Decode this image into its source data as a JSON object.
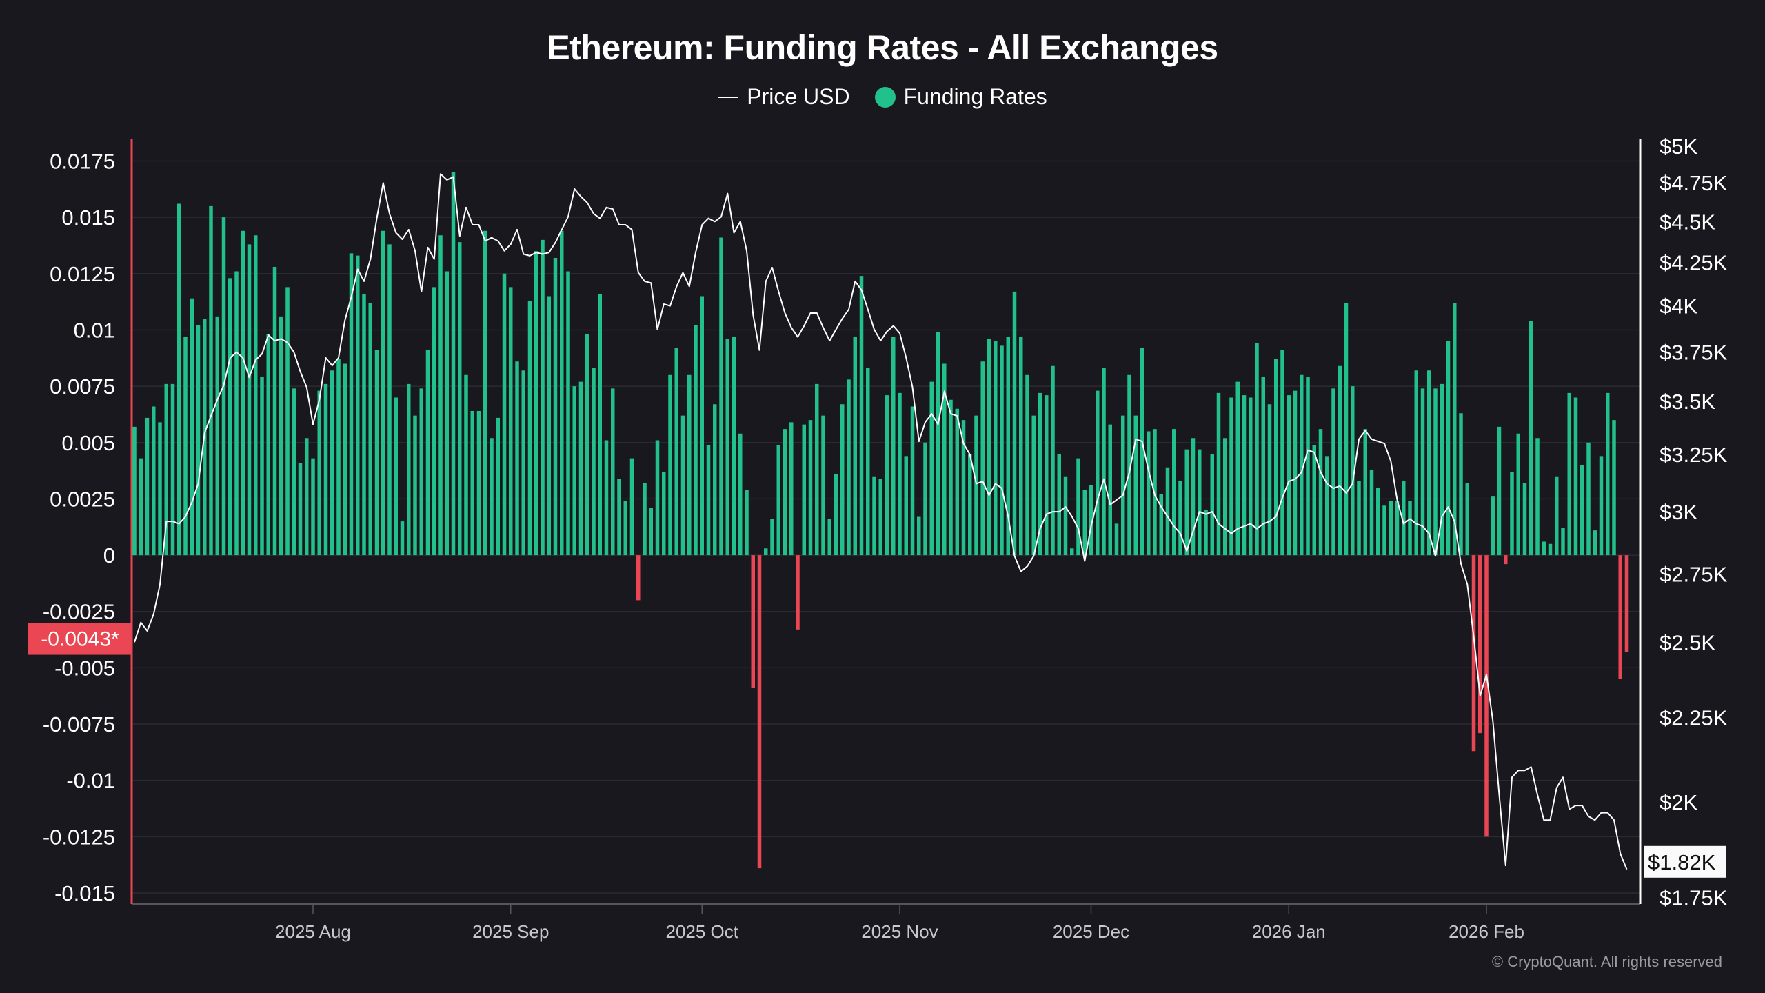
{
  "chart_data": {
    "type": "bar+line",
    "title": "Ethereum: Funding Rates - All Exchanges",
    "legend": [
      {
        "name": "Price USD",
        "type": "line",
        "color": "#ffffff"
      },
      {
        "name": "Funding Rates",
        "type": "bar",
        "color": "#22c08a"
      }
    ],
    "legend_position": "top-center",
    "colors": {
      "positive": "#22c08a",
      "negative": "#ea4653",
      "background": "#18181e",
      "grid": "#2a2a31"
    },
    "grid": true,
    "y_left": {
      "range": [
        -0.015,
        0.0175
      ],
      "ticks": [
        {
          "value": 0.0175,
          "label": "0.0175"
        },
        {
          "value": 0.015,
          "label": "0.015"
        },
        {
          "value": 0.0125,
          "label": "0.0125"
        },
        {
          "value": 0.01,
          "label": "0.01"
        },
        {
          "value": 0.0075,
          "label": "0.0075"
        },
        {
          "value": 0.005,
          "label": "0.005"
        },
        {
          "value": 0.0025,
          "label": "0.0025"
        },
        {
          "value": 0,
          "label": "0"
        },
        {
          "value": -0.0025,
          "label": "-0.0025"
        },
        {
          "value": -0.005,
          "label": "-0.005"
        },
        {
          "value": -0.0075,
          "label": "-0.0075"
        },
        {
          "value": -0.01,
          "label": "-0.01"
        },
        {
          "value": -0.0125,
          "label": "-0.0125"
        },
        {
          "value": -0.015,
          "label": "-0.015"
        }
      ],
      "current_value": -0.0043,
      "current_label": "-0.0043*"
    },
    "y_right": {
      "scale": "log",
      "range": [
        1750,
        5000
      ],
      "ticks": [
        {
          "value": 5000,
          "label": "$5K"
        },
        {
          "value": 4750,
          "label": "$4.75K"
        },
        {
          "value": 4500,
          "label": "$4.5K"
        },
        {
          "value": 4250,
          "label": "$4.25K"
        },
        {
          "value": 4000,
          "label": "$4K"
        },
        {
          "value": 3750,
          "label": "$3.75K"
        },
        {
          "value": 3500,
          "label": "$3.5K"
        },
        {
          "value": 3250,
          "label": "$3.25K"
        },
        {
          "value": 3000,
          "label": "$3K"
        },
        {
          "value": 2750,
          "label": "$2.75K"
        },
        {
          "value": 2500,
          "label": "$2.5K"
        },
        {
          "value": 2250,
          "label": "$2.25K"
        },
        {
          "value": 2000,
          "label": "$2K"
        },
        {
          "value": 1750,
          "label": "$1.75K"
        }
      ],
      "current_value": 1820,
      "current_label": "$1.82K"
    },
    "x_ticks": [
      {
        "date": "2025-08-01",
        "label": "2025 Aug"
      },
      {
        "date": "2025-09-01",
        "label": "2025 Sep"
      },
      {
        "date": "2025-10-01",
        "label": "2025 Oct"
      },
      {
        "date": "2025-11-01",
        "label": "2025 Nov"
      },
      {
        "date": "2025-12-01",
        "label": "2025 Dec"
      },
      {
        "date": "2026-01-01",
        "label": "2026 Jan"
      },
      {
        "date": "2026-02-01",
        "label": "2026 Feb"
      }
    ],
    "x": [
      "2025-07-04",
      "2025-07-05",
      "2025-07-06",
      "2025-07-07",
      "2025-07-08",
      "2025-07-09",
      "2025-07-10",
      "2025-07-11",
      "2025-07-12",
      "2025-07-13",
      "2025-07-14",
      "2025-07-15",
      "2025-07-16",
      "2025-07-17",
      "2025-07-18",
      "2025-07-19",
      "2025-07-20",
      "2025-07-21",
      "2025-07-22",
      "2025-07-23",
      "2025-07-24",
      "2025-07-25",
      "2025-07-26",
      "2025-07-27",
      "2025-07-28",
      "2025-07-29",
      "2025-07-30",
      "2025-07-31",
      "2025-08-01",
      "2025-08-02",
      "2025-08-03",
      "2025-08-04",
      "2025-08-05",
      "2025-08-06",
      "2025-08-07",
      "2025-08-08",
      "2025-08-09",
      "2025-08-10",
      "2025-08-11",
      "2025-08-12",
      "2025-08-13",
      "2025-08-14",
      "2025-08-15",
      "2025-08-16",
      "2025-08-17",
      "2025-08-18",
      "2025-08-19",
      "2025-08-20",
      "2025-08-21",
      "2025-08-22",
      "2025-08-23",
      "2025-08-24",
      "2025-08-25",
      "2025-08-26",
      "2025-08-27",
      "2025-08-28",
      "2025-08-29",
      "2025-08-30",
      "2025-08-31",
      "2025-09-01",
      "2025-09-02",
      "2025-09-03",
      "2025-09-04",
      "2025-09-05",
      "2025-09-06",
      "2025-09-07",
      "2025-09-08",
      "2025-09-09",
      "2025-09-10",
      "2025-09-11",
      "2025-09-12",
      "2025-09-13",
      "2025-09-14",
      "2025-09-15",
      "2025-09-16",
      "2025-09-17",
      "2025-09-18",
      "2025-09-19",
      "2025-09-20",
      "2025-09-21",
      "2025-09-22",
      "2025-09-23",
      "2025-09-24",
      "2025-09-25",
      "2025-09-26",
      "2025-09-27",
      "2025-09-28",
      "2025-09-29",
      "2025-09-30",
      "2025-10-01",
      "2025-10-02",
      "2025-10-03",
      "2025-10-04",
      "2025-10-05",
      "2025-10-06",
      "2025-10-07",
      "2025-10-08",
      "2025-10-09",
      "2025-10-10",
      "2025-10-11",
      "2025-10-12",
      "2025-10-13",
      "2025-10-14",
      "2025-10-15",
      "2025-10-16",
      "2025-10-17",
      "2025-10-18",
      "2025-10-19",
      "2025-10-20",
      "2025-10-21",
      "2025-10-22",
      "2025-10-23",
      "2025-10-24",
      "2025-10-25",
      "2025-10-26",
      "2025-10-27",
      "2025-10-28",
      "2025-10-29",
      "2025-10-30",
      "2025-10-31",
      "2025-11-01",
      "2025-11-02",
      "2025-11-03",
      "2025-11-04",
      "2025-11-05",
      "2025-11-06",
      "2025-11-07",
      "2025-11-08",
      "2025-11-09",
      "2025-11-10",
      "2025-11-11",
      "2025-11-12",
      "2025-11-13",
      "2025-11-14",
      "2025-11-15",
      "2025-11-16",
      "2025-11-17",
      "2025-11-18",
      "2025-11-19",
      "2025-11-20",
      "2025-11-21",
      "2025-11-22",
      "2025-11-23",
      "2025-11-24",
      "2025-11-25",
      "2025-11-26",
      "2025-11-27",
      "2025-11-28",
      "2025-11-29",
      "2025-11-30",
      "2025-12-01",
      "2025-12-02",
      "2025-12-03",
      "2025-12-04",
      "2025-12-05",
      "2025-12-06",
      "2025-12-07",
      "2025-12-08",
      "2025-12-09",
      "2025-12-10",
      "2025-12-11",
      "2025-12-12",
      "2025-12-13",
      "2025-12-14",
      "2025-12-15",
      "2025-12-16",
      "2025-12-17",
      "2025-12-18",
      "2025-12-19",
      "2025-12-20",
      "2025-12-21",
      "2025-12-22",
      "2025-12-23",
      "2025-12-24",
      "2025-12-25",
      "2025-12-26",
      "2025-12-27",
      "2025-12-28",
      "2025-12-29",
      "2025-12-30",
      "2025-12-31",
      "2026-01-01",
      "2026-01-02",
      "2026-01-03",
      "2026-01-04",
      "2026-01-05",
      "2026-01-06",
      "2026-01-07",
      "2026-01-08",
      "2026-01-09",
      "2026-01-10",
      "2026-01-11",
      "2026-01-12",
      "2026-01-13",
      "2026-01-14",
      "2026-01-15",
      "2026-01-16",
      "2026-01-17",
      "2026-01-18",
      "2026-01-19",
      "2026-01-20",
      "2026-01-21",
      "2026-01-22",
      "2026-01-23",
      "2026-01-24",
      "2026-01-25",
      "2026-01-26",
      "2026-01-27",
      "2026-01-28",
      "2026-01-29",
      "2026-01-30",
      "2026-01-31",
      "2026-02-01",
      "2026-02-02",
      "2026-02-03",
      "2026-02-04",
      "2026-02-05",
      "2026-02-06",
      "2026-02-07",
      "2026-02-08",
      "2026-02-09",
      "2026-02-10",
      "2026-02-11",
      "2026-02-12",
      "2026-02-13",
      "2026-02-14",
      "2026-02-15",
      "2026-02-16",
      "2026-02-17",
      "2026-02-18",
      "2026-02-19",
      "2026-02-20",
      "2026-02-21",
      "2026-02-22",
      "2026-02-23"
    ],
    "series": [
      {
        "name": "Funding Rates",
        "type": "bar",
        "axis": "left",
        "values": [
          0.0057,
          0.0043,
          0.0061,
          0.0066,
          0.0059,
          0.0076,
          0.0076,
          0.0156,
          0.0097,
          0.0114,
          0.0102,
          0.0105,
          0.0155,
          0.0106,
          0.015,
          0.0123,
          0.0126,
          0.0144,
          0.0138,
          0.0142,
          0.0079,
          0.0098,
          0.0128,
          0.0106,
          0.0119,
          0.0074,
          0.0041,
          0.0052,
          0.0043,
          0.0073,
          0.0076,
          0.0082,
          0.0087,
          0.0085,
          0.0134,
          0.0133,
          0.0116,
          0.0112,
          0.0091,
          0.0144,
          0.0138,
          0.007,
          0.0015,
          0.0076,
          0.0062,
          0.0074,
          0.0091,
          0.0119,
          0.0142,
          0.0126,
          0.017,
          0.0139,
          0.008,
          0.0064,
          0.0064,
          0.0144,
          0.0052,
          0.0061,
          0.0125,
          0.0119,
          0.0086,
          0.0082,
          0.0113,
          0.0135,
          0.014,
          0.0115,
          0.0132,
          0.0144,
          0.0126,
          0.0075,
          0.0077,
          0.0098,
          0.0083,
          0.0116,
          0.0051,
          0.0074,
          0.0034,
          0.0024,
          0.0043,
          -0.002,
          0.0032,
          0.0021,
          0.0051,
          0.0037,
          0.008,
          0.0092,
          0.0062,
          0.008,
          0.0102,
          0.0115,
          0.0049,
          0.0067,
          0.0141,
          0.0096,
          0.0097,
          0.0054,
          0.0029,
          -0.0059,
          -0.0139,
          0.0003,
          0.0016,
          0.0049,
          0.0056,
          0.0059,
          -0.0033,
          0.0058,
          0.006,
          0.0076,
          0.0062,
          0.0016,
          0.0036,
          0.0067,
          0.0078,
          0.0097,
          0.0124,
          0.0083,
          0.0035,
          0.0034,
          0.0071,
          0.0097,
          0.0072,
          0.0044,
          0.0066,
          0.0017,
          0.005,
          0.0077,
          0.0099,
          0.0085,
          0.0069,
          0.0065,
          0.006,
          0.0045,
          0.0062,
          0.0086,
          0.0096,
          0.0095,
          0.0093,
          0.0097,
          0.0117,
          0.0097,
          0.008,
          0.0062,
          0.0072,
          0.0071,
          0.0084,
          0.0045,
          0.0035,
          0.0003,
          0.0043,
          0.0029,
          0.0031,
          0.0073,
          0.0083,
          0.0058,
          0.0014,
          0.0062,
          0.008,
          0.0062,
          0.0092,
          0.0055,
          0.0056,
          0.0027,
          0.0039,
          0.0056,
          0.0033,
          0.0047,
          0.0052,
          0.0047,
          0.002,
          0.0045,
          0.0072,
          0.0052,
          0.007,
          0.0077,
          0.0071,
          0.007,
          0.0094,
          0.0079,
          0.0067,
          0.0087,
          0.0091,
          0.0071,
          0.0073,
          0.008,
          0.0079,
          0.0049,
          0.0056,
          0.0044,
          0.0074,
          0.0084,
          0.0112,
          0.0075,
          0.0033,
          0.0056,
          0.0038,
          0.003,
          0.0022,
          0.0024,
          0.0024,
          0.0033,
          0.0024,
          0.0082,
          0.0074,
          0.0082,
          0.0074,
          0.0076,
          0.0095,
          0.0112,
          0.0063,
          0.0032,
          -0.0087,
          -0.0079,
          -0.0125,
          0.0026,
          0.0057,
          -0.0004,
          0.0037,
          0.0054,
          0.0032,
          0.0104,
          0.0052,
          0.0006,
          0.0005,
          0.0035,
          0.0012,
          0.0072,
          0.007,
          0.004,
          0.005,
          0.0011,
          0.0044,
          0.0072,
          0.006,
          -0.0055,
          -0.0043
        ]
      },
      {
        "name": "Price USD",
        "type": "line",
        "axis": "right",
        "values": [
          2500,
          2570,
          2540,
          2600,
          2710,
          2960,
          2960,
          2950,
          2980,
          3040,
          3120,
          3350,
          3430,
          3510,
          3580,
          3720,
          3750,
          3720,
          3620,
          3710,
          3740,
          3840,
          3810,
          3820,
          3800,
          3750,
          3650,
          3570,
          3390,
          3510,
          3720,
          3680,
          3720,
          3920,
          4050,
          4210,
          4140,
          4270,
          4520,
          4750,
          4550,
          4430,
          4390,
          4450,
          4320,
          4080,
          4340,
          4270,
          4810,
          4770,
          4790,
          4410,
          4590,
          4480,
          4480,
          4380,
          4400,
          4380,
          4320,
          4360,
          4450,
          4300,
          4290,
          4310,
          4300,
          4310,
          4370,
          4450,
          4530,
          4710,
          4660,
          4620,
          4550,
          4520,
          4590,
          4580,
          4480,
          4480,
          4450,
          4190,
          4140,
          4130,
          3870,
          4010,
          4000,
          4110,
          4190,
          4110,
          4310,
          4480,
          4520,
          4500,
          4530,
          4680,
          4430,
          4500,
          4320,
          3950,
          3760,
          4140,
          4220,
          4080,
          3960,
          3880,
          3830,
          3890,
          3960,
          3960,
          3880,
          3810,
          3870,
          3930,
          3980,
          4140,
          4090,
          3980,
          3870,
          3810,
          3860,
          3890,
          3850,
          3720,
          3570,
          3310,
          3400,
          3440,
          3390,
          3550,
          3440,
          3430,
          3300,
          3250,
          3120,
          3130,
          3070,
          3120,
          3100,
          2980,
          2820,
          2760,
          2780,
          2820,
          2930,
          2990,
          3000,
          3000,
          3020,
          2980,
          2930,
          2800,
          2940,
          3050,
          3140,
          3030,
          3050,
          3070,
          3170,
          3320,
          3310,
          3180,
          3070,
          3020,
          2980,
          2940,
          2910,
          2840,
          2920,
          3000,
          2990,
          3000,
          2950,
          2930,
          2910,
          2930,
          2940,
          2950,
          2930,
          2950,
          2960,
          2980,
          3060,
          3130,
          3140,
          3170,
          3270,
          3260,
          3170,
          3120,
          3100,
          3110,
          3080,
          3120,
          3320,
          3360,
          3320,
          3310,
          3300,
          3220,
          3050,
          2950,
          2970,
          2950,
          2940,
          2910,
          2820,
          2980,
          3020,
          2960,
          2790,
          2710,
          2520,
          2320,
          2390,
          2240,
          2020,
          1830,
          2070,
          2090,
          2090,
          2100,
          2020,
          1950,
          1950,
          2040,
          2070,
          1980,
          1990,
          1990,
          1960,
          1950,
          1970,
          1970,
          1950,
          1860,
          1820
        ]
      }
    ]
  },
  "footer": {
    "copyright": "© CryptoQuant. All rights reserved"
  }
}
